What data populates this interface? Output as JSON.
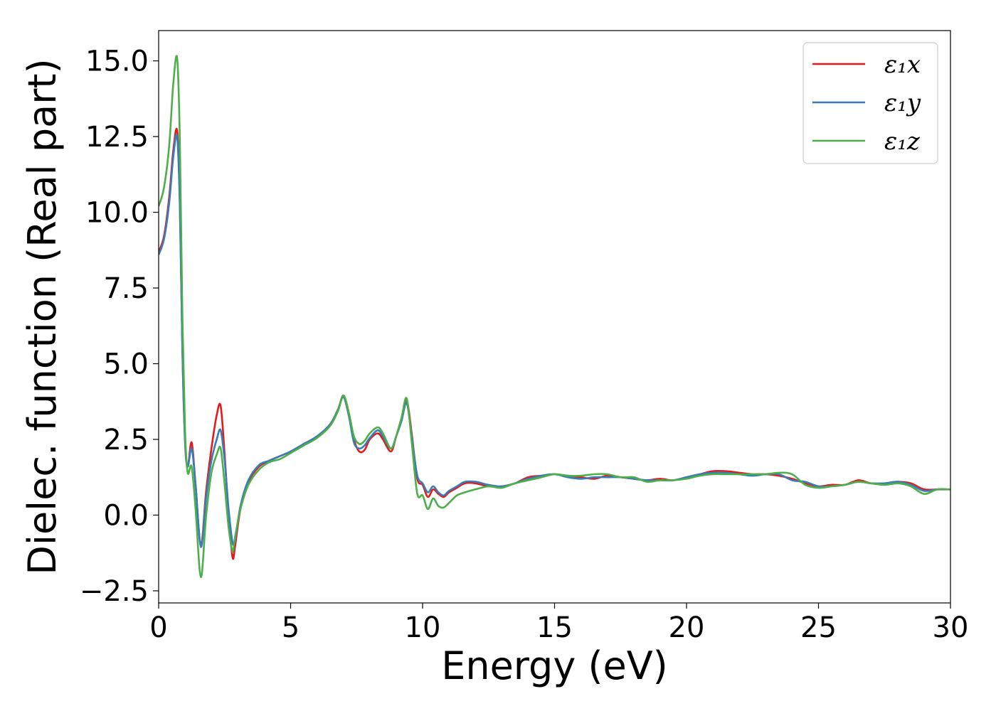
{
  "chart_data": {
    "type": "line",
    "title": "",
    "xlabel": "Energy (eV)",
    "ylabel": "Dielec. function (Real part)",
    "xlim": [
      0,
      30
    ],
    "ylim": [
      -2.9,
      16.0
    ],
    "xticks": [
      0,
      5,
      10,
      15,
      20,
      25,
      30
    ],
    "yticks": [
      -2.5,
      0.0,
      2.5,
      5.0,
      7.5,
      10.0,
      12.5,
      15.0
    ],
    "xtick_labels": [
      "0",
      "5",
      "10",
      "15",
      "20",
      "25",
      "30"
    ],
    "ytick_labels": [
      "−2.5",
      "0.0",
      "2.5",
      "5.0",
      "7.5",
      "10.0",
      "12.5",
      "15.0"
    ],
    "grid": false,
    "legend_position": "top-right",
    "series": [
      {
        "name": "ε₁x",
        "color": "#e41a1c",
        "x": [
          0,
          0.2,
          0.4,
          0.55,
          0.7,
          0.8,
          0.9,
          1.0,
          1.1,
          1.25,
          1.4,
          1.6,
          1.8,
          2.0,
          2.2,
          2.35,
          2.5,
          2.65,
          2.8,
          2.9,
          3.1,
          3.4,
          3.8,
          4.2,
          4.6,
          5.0,
          5.5,
          6.0,
          6.5,
          6.8,
          7.0,
          7.2,
          7.4,
          7.6,
          7.8,
          8.0,
          8.3,
          8.5,
          8.8,
          9.0,
          9.2,
          9.4,
          9.6,
          9.8,
          10.0,
          10.2,
          10.4,
          10.6,
          10.8,
          11.0,
          11.3,
          11.6,
          12.0,
          12.5,
          13.0,
          13.5,
          14.0,
          14.5,
          15.0,
          15.5,
          16.0,
          16.5,
          17.0,
          17.5,
          18.0,
          18.5,
          19.0,
          19.5,
          20.0,
          20.5,
          21.0,
          21.5,
          22.0,
          22.5,
          23.0,
          23.5,
          24.0,
          24.5,
          25.0,
          25.5,
          26.0,
          26.5,
          27.0,
          27.5,
          28.0,
          28.5,
          29.0,
          29.5,
          30.0
        ],
        "values": [
          8.7,
          9.2,
          10.5,
          12.0,
          12.7,
          10.5,
          5.5,
          2.5,
          1.6,
          2.4,
          1.0,
          -1.0,
          0.8,
          2.2,
          3.3,
          3.6,
          2.0,
          0.0,
          -1.4,
          -1.0,
          0.2,
          1.1,
          1.6,
          1.8,
          1.95,
          2.1,
          2.35,
          2.6,
          3.0,
          3.5,
          3.95,
          3.4,
          2.5,
          2.1,
          2.15,
          2.5,
          2.7,
          2.5,
          2.1,
          2.6,
          3.2,
          3.8,
          2.6,
          1.2,
          1.0,
          0.6,
          0.85,
          0.7,
          0.6,
          0.75,
          0.9,
          1.05,
          1.05,
          0.95,
          0.95,
          1.05,
          1.25,
          1.3,
          1.35,
          1.3,
          1.25,
          1.2,
          1.3,
          1.25,
          1.2,
          1.15,
          1.2,
          1.15,
          1.25,
          1.35,
          1.45,
          1.45,
          1.4,
          1.35,
          1.35,
          1.3,
          1.2,
          1.05,
          0.95,
          1.0,
          1.0,
          1.15,
          1.05,
          1.05,
          1.1,
          1.05,
          0.85,
          0.85,
          0.85
        ]
      },
      {
        "name": "ε₁y",
        "color": "#377eb8",
        "x": [
          0,
          0.2,
          0.4,
          0.55,
          0.7,
          0.8,
          0.9,
          1.0,
          1.1,
          1.25,
          1.4,
          1.6,
          1.8,
          2.0,
          2.2,
          2.35,
          2.5,
          2.65,
          2.8,
          2.9,
          3.1,
          3.4,
          3.8,
          4.2,
          4.6,
          5.0,
          5.5,
          6.0,
          6.5,
          6.8,
          7.0,
          7.2,
          7.4,
          7.6,
          7.8,
          8.0,
          8.3,
          8.5,
          8.8,
          9.0,
          9.2,
          9.4,
          9.6,
          9.8,
          10.0,
          10.2,
          10.4,
          10.6,
          10.8,
          11.0,
          11.3,
          11.6,
          12.0,
          12.5,
          13.0,
          13.5,
          14.0,
          14.5,
          15.0,
          15.5,
          16.0,
          16.5,
          17.0,
          17.5,
          18.0,
          18.5,
          19.0,
          19.5,
          20.0,
          20.5,
          21.0,
          21.5,
          22.0,
          22.5,
          23.0,
          23.5,
          24.0,
          24.5,
          25.0,
          25.5,
          26.0,
          26.5,
          27.0,
          27.5,
          28.0,
          28.5,
          29.0,
          29.5,
          30.0
        ],
        "values": [
          8.6,
          9.1,
          10.3,
          11.8,
          12.5,
          10.3,
          5.4,
          2.4,
          1.6,
          2.2,
          1.0,
          -1.05,
          0.6,
          1.8,
          2.5,
          2.8,
          1.8,
          0.2,
          -0.9,
          -0.8,
          0.3,
          1.15,
          1.65,
          1.8,
          1.95,
          2.1,
          2.35,
          2.6,
          3.0,
          3.5,
          3.9,
          3.3,
          2.4,
          2.2,
          2.3,
          2.55,
          2.8,
          2.6,
          2.2,
          2.6,
          3.1,
          3.7,
          2.5,
          1.3,
          1.05,
          0.75,
          0.95,
          0.75,
          0.65,
          0.8,
          0.95,
          1.1,
          1.1,
          1.0,
          0.95,
          1.05,
          1.2,
          1.3,
          1.35,
          1.25,
          1.2,
          1.25,
          1.25,
          1.25,
          1.2,
          1.15,
          1.15,
          1.15,
          1.25,
          1.35,
          1.4,
          1.4,
          1.35,
          1.3,
          1.35,
          1.35,
          1.15,
          1.1,
          0.95,
          0.95,
          1.0,
          1.1,
          1.05,
          1.05,
          1.1,
          1.0,
          0.8,
          0.85,
          0.85
        ]
      },
      {
        "name": "ε₁z",
        "color": "#4daf4a",
        "x": [
          0,
          0.2,
          0.4,
          0.55,
          0.7,
          0.8,
          0.9,
          1.0,
          1.1,
          1.25,
          1.4,
          1.6,
          1.8,
          2.0,
          2.2,
          2.35,
          2.5,
          2.65,
          2.8,
          2.9,
          3.1,
          3.4,
          3.8,
          4.2,
          4.6,
          5.0,
          5.5,
          6.0,
          6.5,
          6.8,
          7.0,
          7.2,
          7.4,
          7.6,
          7.8,
          8.0,
          8.3,
          8.5,
          8.8,
          9.0,
          9.2,
          9.4,
          9.6,
          9.8,
          10.0,
          10.2,
          10.4,
          10.6,
          10.8,
          11.0,
          11.3,
          11.6,
          12.0,
          12.5,
          13.0,
          13.5,
          14.0,
          14.5,
          15.0,
          15.5,
          16.0,
          16.5,
          17.0,
          17.5,
          18.0,
          18.5,
          19.0,
          19.5,
          20.0,
          20.5,
          21.0,
          21.5,
          22.0,
          22.5,
          23.0,
          23.5,
          24.0,
          24.5,
          25.0,
          25.5,
          26.0,
          26.5,
          27.0,
          27.5,
          28.0,
          28.5,
          29.0,
          29.5,
          30.0
        ],
        "values": [
          10.2,
          10.8,
          12.2,
          14.2,
          15.1,
          12.5,
          6.5,
          2.8,
          1.4,
          1.6,
          0.2,
          -2.05,
          0.0,
          1.4,
          2.0,
          2.2,
          1.0,
          -0.4,
          -1.2,
          -0.7,
          0.2,
          1.0,
          1.5,
          1.75,
          1.85,
          2.05,
          2.3,
          2.55,
          2.95,
          3.45,
          3.95,
          3.4,
          2.6,
          2.35,
          2.45,
          2.7,
          2.9,
          2.7,
          2.2,
          2.6,
          3.2,
          3.85,
          2.3,
          0.7,
          0.65,
          0.2,
          0.55,
          0.3,
          0.25,
          0.4,
          0.65,
          0.75,
          0.85,
          0.95,
          0.9,
          1.05,
          1.15,
          1.25,
          1.35,
          1.3,
          1.3,
          1.35,
          1.35,
          1.25,
          1.25,
          1.1,
          1.15,
          1.15,
          1.2,
          1.3,
          1.35,
          1.35,
          1.35,
          1.35,
          1.35,
          1.4,
          1.35,
          1.0,
          0.9,
          0.95,
          1.0,
          1.1,
          1.05,
          1.0,
          1.05,
          0.95,
          0.7,
          0.85,
          0.85
        ]
      }
    ]
  }
}
